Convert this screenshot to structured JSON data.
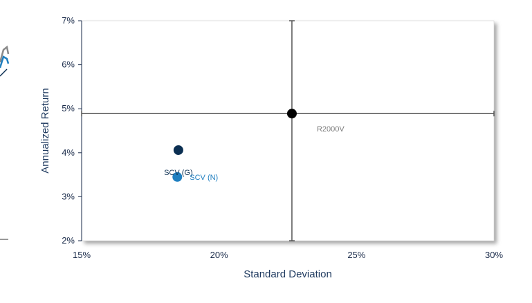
{
  "chart_data": {
    "type": "scatter",
    "xlabel": "Standard Deviation",
    "ylabel": "Annualized Return",
    "xlim": [
      0.15,
      0.3
    ],
    "ylim": [
      0.02,
      0.07
    ],
    "x_ticks": [
      0.15,
      0.2,
      0.25,
      0.3
    ],
    "x_tick_labels": [
      "15%",
      "20%",
      "25%",
      "30%"
    ],
    "y_ticks": [
      0.02,
      0.03,
      0.04,
      0.05,
      0.06,
      0.07
    ],
    "y_tick_labels": [
      "2%",
      "3%",
      "4%",
      "5%",
      "6%",
      "7%"
    ],
    "grid": false,
    "reference_point": "R2000V",
    "points": [
      {
        "label": "SCV (G)",
        "x": 0.1852,
        "y": 0.0406,
        "color": "#0b2f52",
        "label_color": "#0b2f52"
      },
      {
        "label": "SCV (N)",
        "x": 0.1848,
        "y": 0.0345,
        "color": "#1f7fc0",
        "label_color": "#1f7fc0"
      },
      {
        "label": "R2000V",
        "x": 0.2265,
        "y": 0.0489,
        "color": "#000000",
        "label_color": "#7a7a7a"
      }
    ]
  }
}
